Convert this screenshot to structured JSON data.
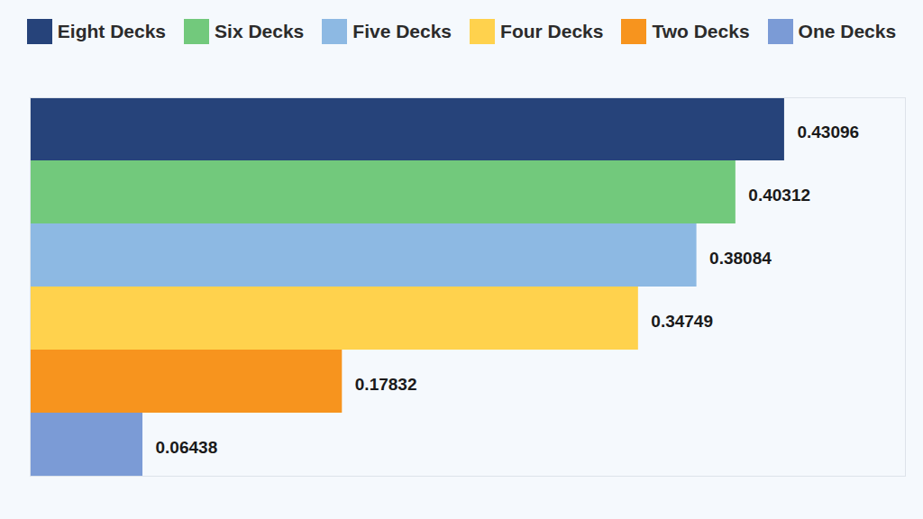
{
  "chart_data": {
    "type": "bar",
    "orientation": "horizontal",
    "categories": [
      "Eight Decks",
      "Six Decks",
      "Five Decks",
      "Four Decks",
      "Two Decks",
      "One Decks"
    ],
    "values": [
      0.43096,
      0.40312,
      0.38084,
      0.34749,
      0.17832,
      0.06438
    ],
    "colors": [
      "#26437a",
      "#72c97c",
      "#8db9e3",
      "#ffd24d",
      "#f7941e",
      "#7b9bd6"
    ],
    "xlim": [
      0,
      0.5
    ],
    "tick_labels": false,
    "grid": false,
    "legend": "top",
    "data_labels": true
  }
}
